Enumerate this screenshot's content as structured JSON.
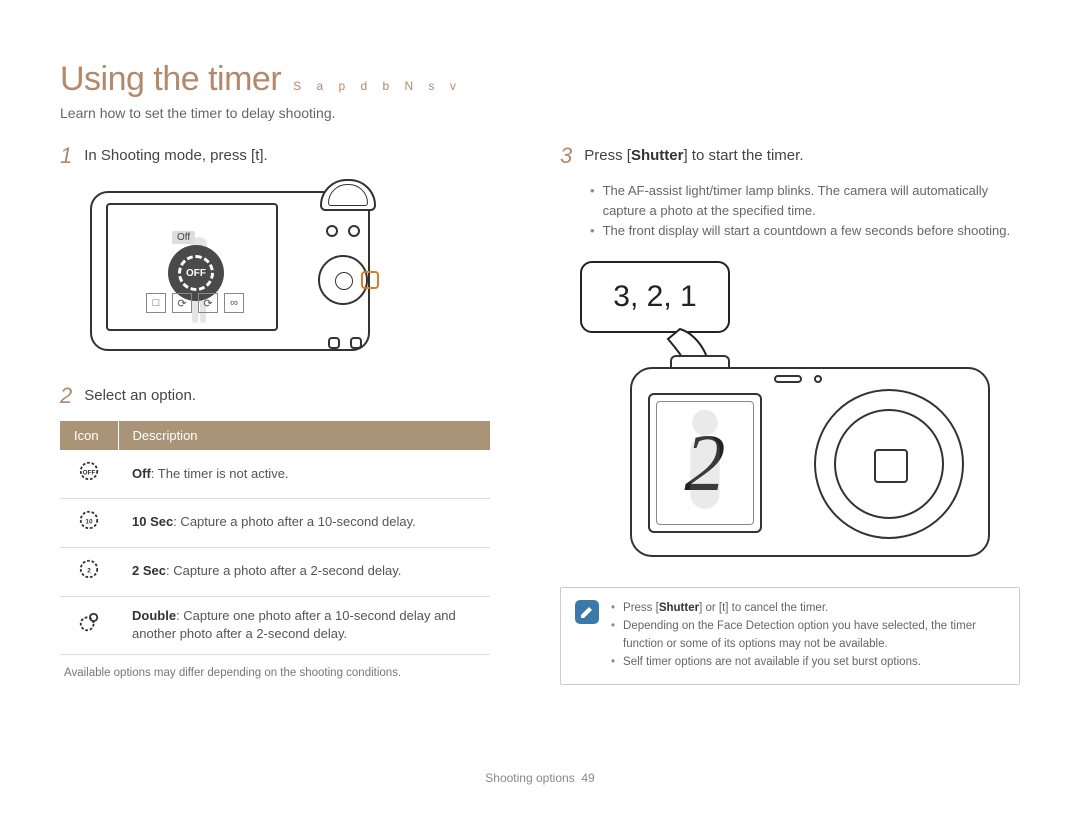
{
  "page": {
    "title": "Using the timer",
    "mode_letters": "S a p d b N s v",
    "subtitle": "Learn how to set the timer to delay shooting.",
    "footer_section": "Shooting options",
    "footer_page": "49"
  },
  "colors": {
    "accent": "#b2896a",
    "table_header_bg": "#a99478",
    "note_icon_bg": "#3b7aa8",
    "highlight_border": "#d97a2a",
    "body_text": "#555555",
    "rule": "#dddddd"
  },
  "left": {
    "step1": {
      "num": "1",
      "prefix": "In Shooting mode, press [",
      "key": "t",
      "suffix": "]."
    },
    "camera_back": {
      "off_label": "Off",
      "off_badge": "OFF",
      "option_icons": [
        "□",
        "⟳",
        "⟳",
        "∞"
      ]
    },
    "step2": {
      "num": "2",
      "text": "Select an option."
    },
    "table": {
      "headers": {
        "icon": "Icon",
        "desc": "Description"
      },
      "rows": [
        {
          "icon_sub": "OFF",
          "label": "Off",
          "desc": ": The timer is not active."
        },
        {
          "icon_sub": "10",
          "label": "10 Sec",
          "desc": ": Capture a photo after a 10-second delay."
        },
        {
          "icon_sub": "2",
          "label": "2 Sec",
          "desc": ": Capture a photo after a 2-second delay."
        },
        {
          "icon_sub": "",
          "label": "Double",
          "desc": ": Capture one photo after a 10-second delay and another photo after a 2-second delay."
        }
      ]
    },
    "footnote": "Available options may differ depending on the shooting conditions."
  },
  "right": {
    "step3": {
      "num": "3",
      "prefix": "Press [",
      "bold": "Shutter",
      "suffix": "] to start the timer."
    },
    "bullets": [
      "The AF-assist light/timer lamp blinks. The camera will automatically capture a photo at the specified time.",
      "The front display will start a countdown a few seconds before shooting."
    ],
    "countdown": "3, 2, 1",
    "front_display_value": "2",
    "note": {
      "icon": "✓",
      "items": [
        {
          "pre": "Press [",
          "bold": "Shutter",
          "mid": "] or [",
          "key": "t",
          "post": "] to cancel the timer."
        },
        {
          "text": "Depending on the Face Detection option you have selected, the timer function or some of its options may not be available."
        },
        {
          "text": "Self timer options are not available if you set burst options."
        }
      ]
    }
  }
}
